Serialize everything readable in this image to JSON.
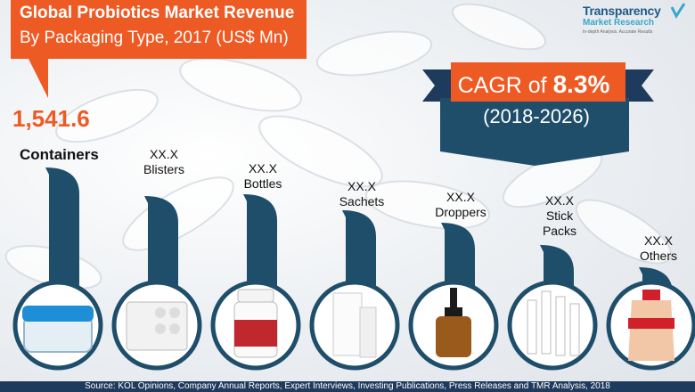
{
  "title": {
    "line1": "Global Probiotics Market Revenue",
    "line2": "By Packaging Type, 2017 (US$ Mn)"
  },
  "logo": {
    "name": "Transparency",
    "name2": "Market Research",
    "tagline": "In-depth Analysis. Accurate Results"
  },
  "cagr": {
    "prefix": "CAGR of",
    "value": "8.3%",
    "period": "(2018-2026)"
  },
  "source": "Source: KOL Opinions, Company Annual Reports, Expert Interviews, Investing Publications, Press Releases and TMR Analysis, 2018",
  "colors": {
    "accent": "#ee5a24",
    "bar": "#1f4e6b",
    "dark": "#1e3a5c"
  },
  "chart_data": {
    "type": "bar",
    "title": "Global Probiotics Market Revenue By Packaging Type, 2017 (US$ Mn)",
    "categories": [
      "Containers",
      "Blisters",
      "Bottles",
      "Sachets",
      "Droppers",
      "Stick Packs",
      "Others"
    ],
    "value_labels": [
      "1,541.6",
      "XX.X",
      "XX.X",
      "XX.X",
      "XX.X",
      "XX.X",
      "XX.X"
    ],
    "values": [
      1541.6,
      null,
      null,
      null,
      null,
      null,
      null
    ]
  }
}
